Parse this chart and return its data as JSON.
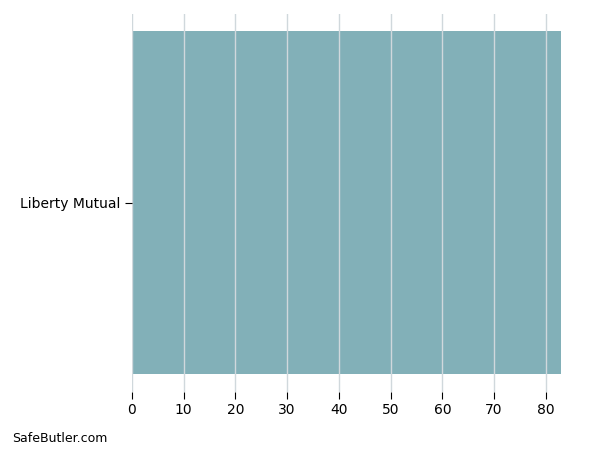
{
  "categories": [
    "Liberty Mutual"
  ],
  "values": [
    83
  ],
  "bar_color": "#82b0b8",
  "xlim": [
    0,
    87
  ],
  "xticks": [
    0,
    10,
    20,
    30,
    40,
    50,
    60,
    70,
    80
  ],
  "background_color": "#ffffff",
  "watermark": "SafeButler.com",
  "bar_height": 0.95,
  "grid_color": "#d0d8dc",
  "tick_fontsize": 10,
  "label_fontsize": 10,
  "grid_linewidth": 1.0
}
